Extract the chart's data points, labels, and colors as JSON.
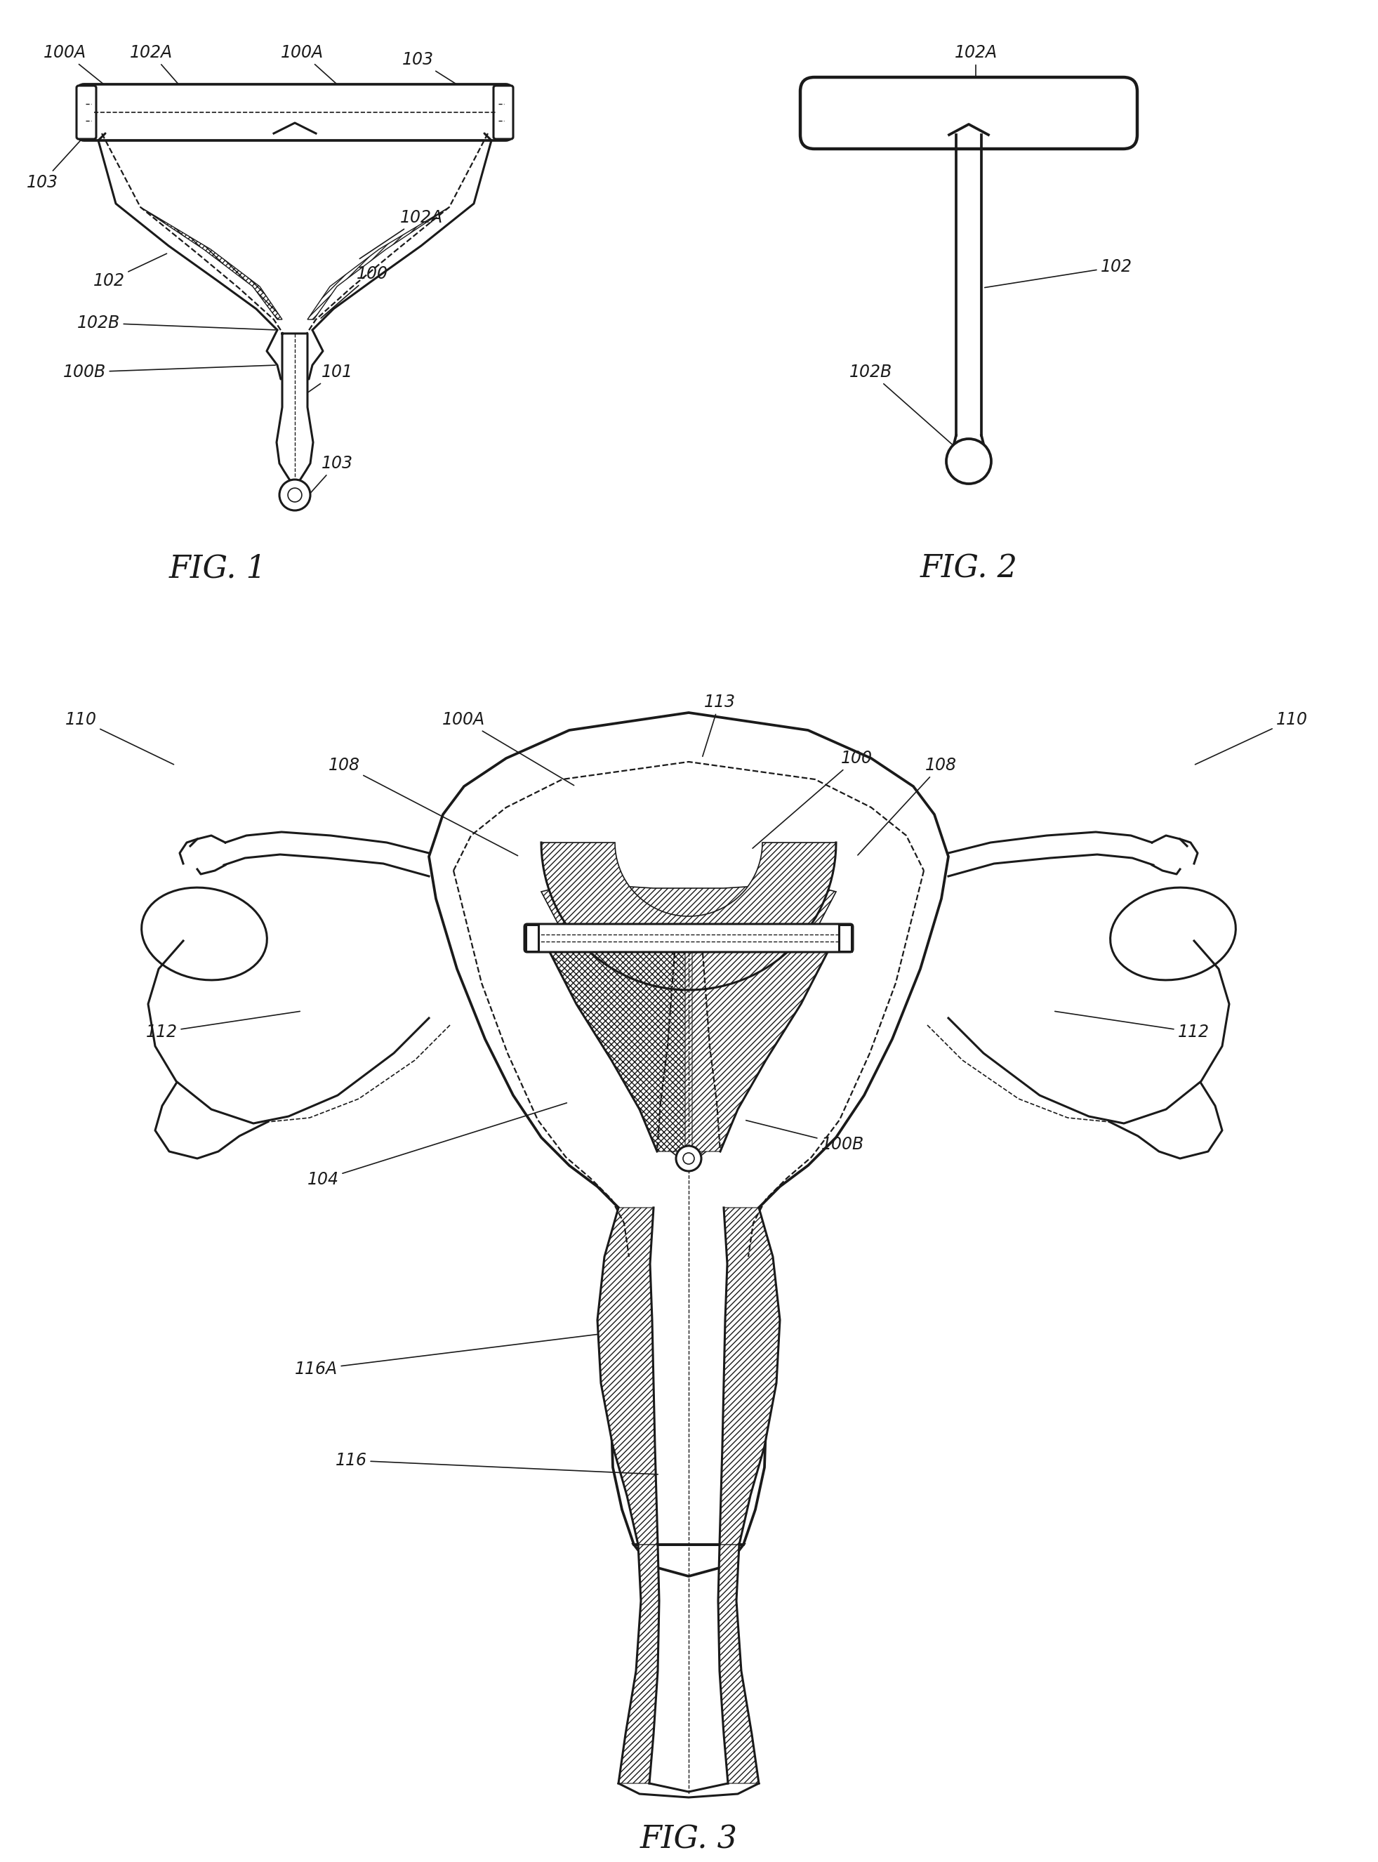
{
  "fig_width": 19.63,
  "fig_height": 26.52,
  "bg_color": "#ffffff",
  "line_color": "#1a1a1a",
  "annot_fontsize": 17,
  "fig_label_fontsize": 32,
  "fig1_label": "FIG. 1",
  "fig2_label": "FIG. 2",
  "fig3_label": "FIG. 3"
}
